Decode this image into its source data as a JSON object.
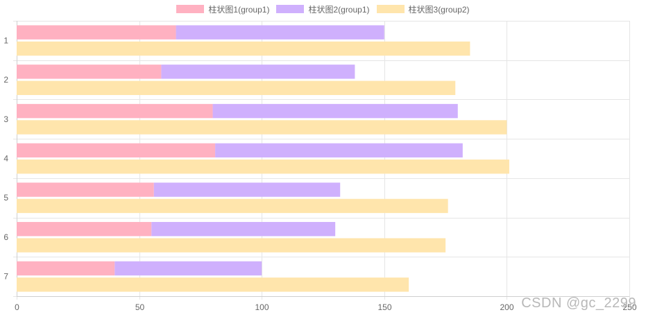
{
  "legend": [
    {
      "label": "柱状图1(group1)",
      "color": "#ffb1c1"
    },
    {
      "label": "柱状图2(group1)",
      "color": "#cfb0fd"
    },
    {
      "label": "柱状图3(group2)",
      "color": "#ffe5ac"
    }
  ],
  "watermark": "CSDN @gc_2299",
  "chart_data": {
    "type": "bar",
    "orientation": "horizontal",
    "stacked_groups": {
      "group1": [
        "柱状图1(group1)",
        "柱状图2(group1)"
      ],
      "group2": [
        "柱状图3(group2)"
      ]
    },
    "categories": [
      "1",
      "2",
      "3",
      "4",
      "5",
      "6",
      "7"
    ],
    "series": [
      {
        "name": "柱状图1(group1)",
        "stack": "group1",
        "values": [
          65,
          59,
          80,
          81,
          56,
          55,
          40
        ]
      },
      {
        "name": "柱状图2(group1)",
        "stack": "group1",
        "values": [
          85,
          79,
          100,
          101,
          76,
          75,
          60
        ]
      },
      {
        "name": "柱状图3(group2)",
        "stack": "group2",
        "values": [
          185,
          179,
          200,
          201,
          176,
          175,
          160
        ]
      }
    ],
    "xlim": [
      0,
      250
    ],
    "x_ticks": [
      "0",
      "50",
      "100",
      "150",
      "200",
      "250"
    ],
    "grid": true,
    "legend_position": "top"
  }
}
